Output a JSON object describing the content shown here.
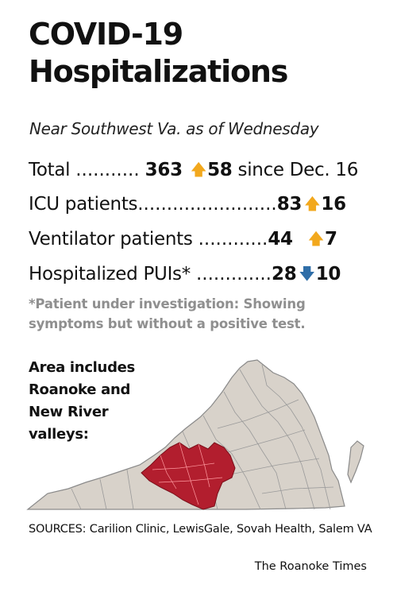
{
  "title_line1": "COVID-19",
  "title_line2": "Hospitalizations",
  "subtitle": "Near Southwest Va. as of Wednesday",
  "rows": [
    {
      "label": "Total",
      "dots": "...........",
      "value": "363",
      "change": "58",
      "since": "since Dec. 16",
      "direction": "up"
    },
    {
      "label": "ICU patients",
      "dots": "........................",
      "value": "83",
      "change": "16",
      "since": "",
      "direction": "up"
    },
    {
      "label": "Ventilator patients",
      "dots": "............",
      "value": "44",
      "change": "7",
      "since": "",
      "direction": "up"
    },
    {
      "label": "Hospitalized PUIs*",
      "dots": ".............",
      "value": "28",
      "change": "10",
      "since": "",
      "direction": "down"
    }
  ],
  "footnote": "*Patient under investigation:  Showing symptoms but without a positive test.",
  "area_note": "Area includes Roanoke and New River valleys:",
  "map": {
    "state_fill": "#d8d2ca",
    "highlight_fill": "#b21e2e",
    "border_color": "#8a8a8a"
  },
  "sources": "SOURCES: Carilion Clinic, LewisGale, Sovah Health, Salem VA",
  "credit": "The Roanoke Times",
  "colors": {
    "up_arrow": "#f2a81d",
    "down_arrow": "#2f6ea8",
    "note_text": "#8f8f8f"
  },
  "icons": {
    "up": "up-arrow-icon",
    "down": "down-arrow-icon"
  }
}
